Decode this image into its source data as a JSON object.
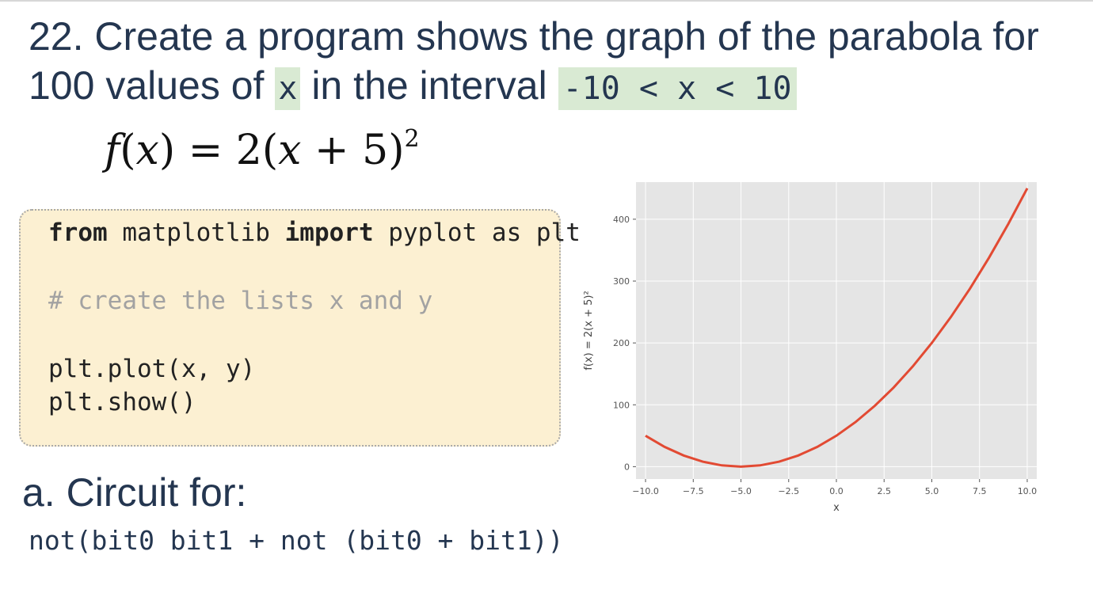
{
  "question": {
    "line1": "22. Create a program shows the graph of the parabola for",
    "line2_prefix": "100 values of ",
    "var_x": "x",
    "line2_middle": " in the interval ",
    "interval": "-10 < x < 10"
  },
  "formula": {
    "f": "f",
    "open_x": "(",
    "x": "x",
    "close_eq": ") = 2(",
    "x2": "x",
    "plus5": " + 5)",
    "exponent": "2"
  },
  "code": {
    "line1_kw1": "from",
    "line1_mod": " matplotlib ",
    "line1_kw2": "import",
    "line1_rest": " pyplot as plt",
    "comment": "# create the lists x and y",
    "line3": "plt.plot(x, y)",
    "line4": "plt.show()"
  },
  "circuit": {
    "title": "a.  Circuit for:",
    "expression": "not(bit0 bit1 + not (bit0 + bit1))"
  },
  "colors": {
    "code_bg": "#fcf0d2",
    "highlight_bg": "#d9ead3",
    "plot_bg": "#e5e5e5",
    "line_color": "#e24a33",
    "text": "#243650"
  },
  "chart_data": {
    "type": "line",
    "function": "f(x) = 2(x + 5)^2",
    "xlabel": "x",
    "ylabel": "f(x) = 2(x + 5)²",
    "xlim": [
      -10.5,
      10.5
    ],
    "ylim": [
      -20,
      460
    ],
    "xticks": [
      "−10.0",
      "−7.5",
      "−5.0",
      "−2.5",
      "0.0",
      "2.5",
      "5.0",
      "7.5",
      "10.0"
    ],
    "yticks": [
      "0",
      "100",
      "200",
      "300",
      "400"
    ],
    "grid": true,
    "series": [
      {
        "x": [
          -10,
          -9,
          -8,
          -7,
          -6,
          -5,
          -4,
          -3,
          -2,
          -1,
          0,
          1,
          2,
          3,
          4,
          5,
          6,
          7,
          8,
          9,
          10
        ],
        "values": [
          50,
          32,
          18,
          8,
          2,
          0,
          2,
          8,
          18,
          32,
          50,
          72,
          98,
          128,
          162,
          200,
          242,
          288,
          338,
          392,
          450
        ]
      }
    ]
  }
}
